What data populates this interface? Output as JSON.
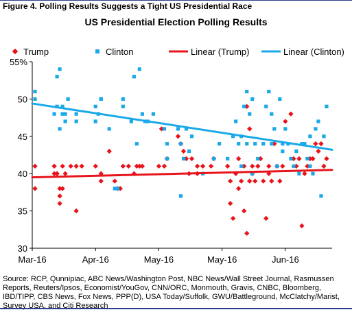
{
  "figure_title": "Figure 4. Polling Results Suggests a Tight US Presidential Race",
  "source_note": "Source: RCP, Qunnipiac, ABC News/Washington Post, NBC News/Wall Street Journal, Rasmussen Reports, Reuters/Ipsos, Economist/YouGov, CNN/ORC, Monmouth, Gravis, CNBC, Bloomberg, IBD/TIPP, CBS News, Fox News, PPP(D), USA Today/Suffolk, GWU/Battleground, McClatchy/Marist, Survey USA, and Citi Research",
  "colors": {
    "trump": "#e8141c",
    "clinton": "#1aa9e8",
    "axis": "#000000",
    "rule": "#2d3c8c"
  },
  "chart_data": {
    "type": "scatter",
    "title": "US Presidential Election Polling Results",
    "xlabel": "",
    "ylabel": "",
    "ylim": [
      30,
      55
    ],
    "y_ticks": [
      "30",
      "35",
      "40",
      "45",
      "50",
      "55%"
    ],
    "x_ticks": [
      "Mar-16",
      "Apr-16",
      "May-16",
      "May-16",
      "Jun-16"
    ],
    "xlim": [
      0,
      109
    ],
    "x_tick_positions": [
      0,
      23,
      46,
      69,
      92
    ],
    "grid": false,
    "legend_position": "top",
    "legend": [
      {
        "label": "Trump",
        "type": "marker",
        "marker": "diamond",
        "color": "#e8141c"
      },
      {
        "label": "Clinton",
        "type": "marker",
        "marker": "square",
        "color": "#1aa9e8"
      },
      {
        "label": "Linear (Trump)",
        "type": "line",
        "color": "#e8141c"
      },
      {
        "label": "Linear (Clinton)",
        "type": "line",
        "color": "#1aa9e8"
      }
    ],
    "series": [
      {
        "name": "Trump",
        "marker": "diamond",
        "color": "#e8141c",
        "x": [
          1,
          1,
          8,
          8,
          9,
          9,
          10,
          10,
          10,
          11,
          11,
          12,
          14,
          16,
          16,
          18,
          23,
          25,
          25,
          28,
          30,
          31,
          32,
          33,
          35,
          37,
          38,
          39,
          40,
          46,
          47,
          48,
          49,
          53,
          54,
          55,
          56,
          57,
          58,
          60,
          60,
          62,
          65,
          66,
          71,
          72,
          72,
          73,
          74,
          75,
          75,
          76,
          77,
          77,
          78,
          78,
          79,
          79,
          80,
          80,
          81,
          82,
          83,
          84,
          85,
          86,
          86,
          87,
          88,
          89,
          90,
          91,
          92,
          94,
          95,
          96,
          97,
          98,
          99,
          100,
          101,
          102,
          103,
          104,
          105,
          106,
          107
        ],
        "y": [
          41,
          38,
          40,
          41,
          40,
          40,
          38,
          37,
          36,
          41,
          38,
          40,
          41,
          35,
          41,
          41,
          41,
          40,
          39,
          43,
          39,
          38,
          38,
          41,
          41,
          40,
          41,
          41,
          41,
          41,
          46,
          41,
          42,
          45,
          44,
          43,
          42,
          40,
          42,
          41,
          40,
          41,
          41,
          42,
          41,
          36,
          39,
          34,
          40,
          42,
          38,
          39,
          35,
          41,
          32,
          49,
          46,
          39,
          41,
          40,
          39,
          41,
          42,
          39,
          34,
          41,
          40,
          39,
          44,
          41,
          39,
          41,
          47,
          48,
          42,
          41,
          42,
          33,
          40,
          41,
          42,
          42,
          44,
          43,
          44,
          41,
          42
        ]
      },
      {
        "name": "Clinton",
        "marker": "square",
        "color": "#1aa9e8",
        "x": [
          1,
          1,
          8,
          9,
          9,
          10,
          10,
          11,
          11,
          12,
          12,
          13,
          16,
          16,
          23,
          23,
          24,
          25,
          25,
          28,
          30,
          31,
          33,
          33,
          36,
          37,
          38,
          39,
          40,
          41,
          42,
          44,
          48,
          49,
          49,
          53,
          54,
          54,
          55,
          56,
          57,
          58,
          62,
          66,
          68,
          71,
          73,
          74,
          75,
          76,
          76,
          77,
          78,
          78,
          79,
          80,
          80,
          81,
          82,
          84,
          85,
          86,
          87,
          87,
          88,
          89,
          90,
          91,
          91,
          92,
          93,
          94,
          95,
          96,
          97,
          98,
          99,
          100,
          101,
          101,
          102,
          103,
          104,
          105,
          106,
          107
        ],
        "y": [
          51,
          50,
          48,
          53,
          49,
          46,
          54,
          49,
          48,
          47,
          48,
          50,
          47,
          48,
          47,
          49,
          48,
          50,
          50,
          46,
          38,
          38,
          49,
          50,
          47,
          53,
          44,
          54,
          48,
          47,
          47,
          48,
          46,
          42,
          44,
          46,
          37,
          44,
          42,
          46,
          43,
          45,
          40,
          42,
          44,
          42,
          45,
          47,
          44,
          45,
          41,
          49,
          51,
          44,
          48,
          40,
          50,
          44,
          42,
          44,
          49,
          51,
          44,
          48,
          46,
          41,
          50,
          43,
          44,
          46,
          44,
          42,
          41,
          43,
          40,
          44,
          44,
          42,
          41,
          45,
          40,
          46,
          47,
          37,
          45,
          49
        ]
      }
    ],
    "trendlines": [
      {
        "name": "Linear (Trump)",
        "color": "#e8141c",
        "x": [
          0,
          109
        ],
        "y": [
          39.5,
          40.5
        ]
      },
      {
        "name": "Linear (Clinton)",
        "color": "#1aa9e8",
        "x": [
          0,
          109
        ],
        "y": [
          49.4,
          43.2
        ]
      }
    ]
  }
}
